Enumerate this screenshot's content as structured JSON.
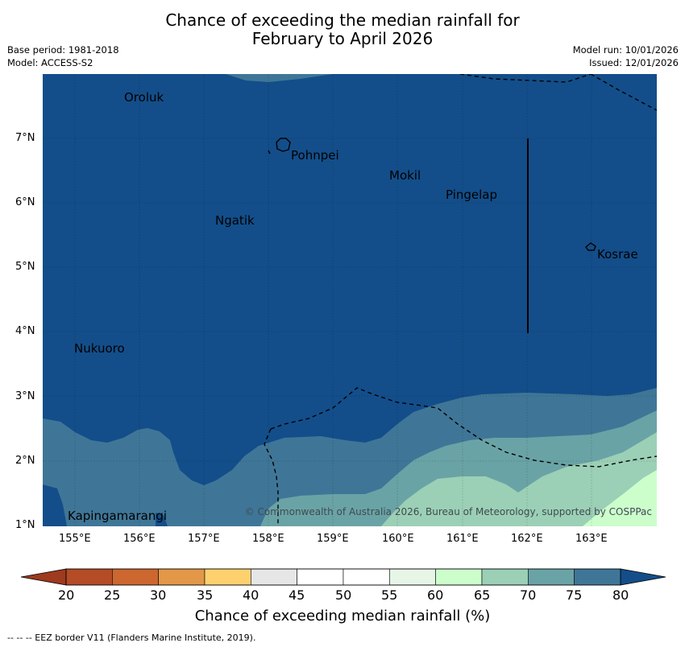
{
  "title": {
    "line1": "Chance of exceeding the median rainfall for",
    "line2": "February to April 2026"
  },
  "meta": {
    "base_period": "Base period: 1981-2018",
    "model": "Model: ACCESS-S2",
    "model_run": "Model run: 10/01/2026",
    "issued": "Issued: 12/01/2026"
  },
  "map": {
    "lon_labels": [
      "155°E",
      "156°E",
      "157°E",
      "158°E",
      "159°E",
      "160°E",
      "161°E",
      "162°E",
      "163°E"
    ],
    "lat_labels": [
      "7°N",
      "6°N",
      "5°N",
      "4°N",
      "3°N",
      "2°N",
      "1°N"
    ],
    "places": [
      "Oroluk",
      "Pohnpei",
      "Mokil",
      "Pingelap",
      "Ngatik",
      "Kosrae",
      "Nukuoro",
      "Kapingamarangi"
    ],
    "copyright": "© Commonwealth of Australia 2026, Bureau of Meteorology, supported by COSPPac",
    "colors": {
      "p80": "#134e8a",
      "p75_80": "#3f7697",
      "p70_75": "#6aa3a6",
      "p65_70": "#9bd0b6",
      "p60_65": "#ccfecc"
    }
  },
  "colorbar": {
    "ticks": [
      "20",
      "25",
      "30",
      "35",
      "40",
      "45",
      "50",
      "55",
      "60",
      "65",
      "70",
      "75",
      "80"
    ],
    "colors": [
      "#b44c26",
      "#cd6730",
      "#e39748",
      "#fed16e",
      "#e6e6e6",
      "#ffffff",
      "#ffffff",
      "#e7f5e6",
      "#ccfecc",
      "#9bd0b6",
      "#6aa3a6",
      "#3f7697"
    ],
    "low_color": "#9e3a1e",
    "high_color": "#134e8a",
    "title": "Chance of exceeding median rainfall (%)"
  },
  "footnote": "--  --  -- EEZ border V11 (Flanders Marine Institute, 2019)."
}
